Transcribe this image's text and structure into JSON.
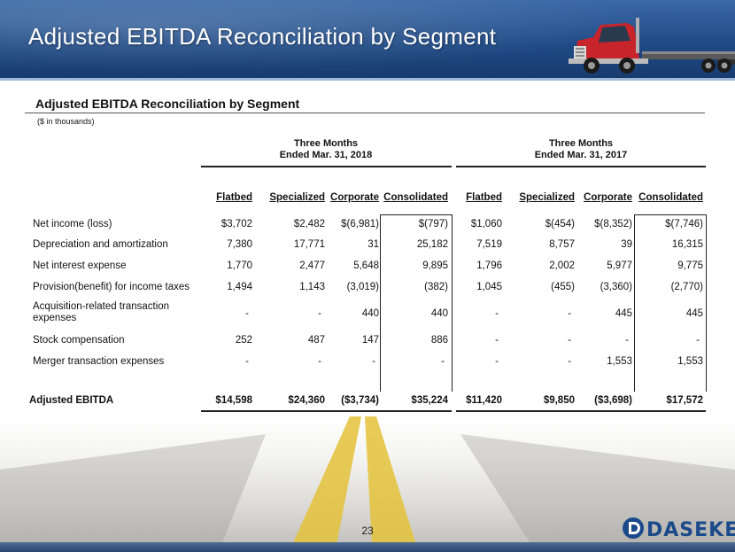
{
  "slide": {
    "title": "Adjusted EBITDA Reconciliation by Segment",
    "page_number": "23",
    "logo_text": "DASEKE"
  },
  "table": {
    "title": "Adjusted EBITDA Reconciliation by Segment",
    "units": "($ in thousands)",
    "periods": [
      {
        "line1": "Three Months",
        "line2": "Ended Mar. 31, 2018"
      },
      {
        "line1": "Three Months",
        "line2": "Ended Mar. 31, 2017"
      }
    ],
    "columns": [
      "Flatbed",
      "Specialized",
      "Corporate",
      "Consolidated",
      "Flatbed",
      "Specialized",
      "Corporate",
      "Consolidated"
    ],
    "rows": [
      {
        "label": "Net income (loss)",
        "values": [
          "$3,702",
          "$2,482",
          "$(6,981)",
          "$(797)",
          "$1,060",
          "$(454)",
          "$(8,352)",
          "$(7,746)"
        ]
      },
      {
        "label": "Depreciation and amortization",
        "values": [
          "7,380",
          "17,771",
          "31",
          "25,182",
          "7,519",
          "8,757",
          "39",
          "16,315"
        ]
      },
      {
        "label": "Net interest expense",
        "values": [
          "1,770",
          "2,477",
          "5,648",
          "9,895",
          "1,796",
          "2,002",
          "5,977",
          "9,775"
        ]
      },
      {
        "label": "Provision(benefit) for income taxes",
        "values": [
          "1,494",
          "1,143",
          "(3,019)",
          "(382)",
          "1,045",
          "(455)",
          "(3,360)",
          "(2,770)"
        ]
      },
      {
        "label": "Acquisition-related transaction expenses",
        "label_line1": "Acquisition-related transaction",
        "label_line2": "expenses",
        "values": [
          "-",
          "-",
          "440",
          "440",
          "-",
          "-",
          "445",
          "445"
        ]
      },
      {
        "label": "Stock compensation",
        "values": [
          "252",
          "487",
          "147",
          "886",
          "-",
          "-",
          "-",
          "-"
        ]
      },
      {
        "label": "Merger transaction expenses",
        "values": [
          "-",
          "-",
          "-",
          "-",
          "-",
          "-",
          "1,553",
          "1,553"
        ]
      }
    ],
    "total": {
      "label": "Adjusted EBITDA",
      "values": [
        "$14,598",
        "$24,360",
        "($3,734)",
        "$35,224",
        "$11,420",
        "$9,850",
        "($3,698)",
        "$17,572"
      ]
    }
  },
  "colors": {
    "header_blue": "#1f4a86",
    "logo_blue": "#1b4a8a",
    "truck_red": "#c8242b"
  }
}
